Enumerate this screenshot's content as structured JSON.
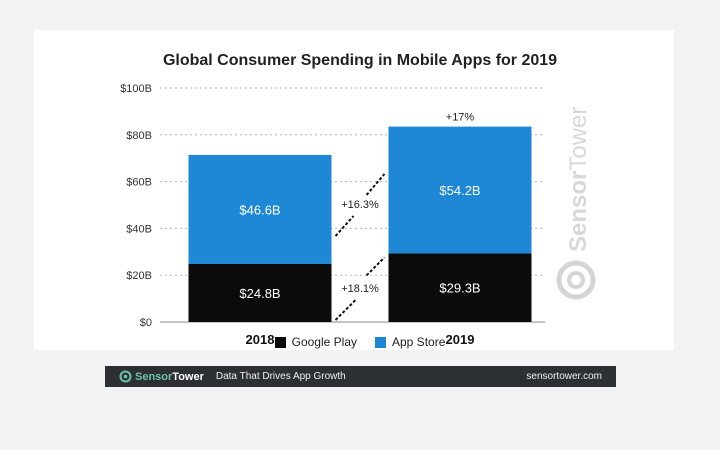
{
  "chart_data": {
    "type": "bar",
    "stacked": true,
    "title": "Global Consumer Spending in Mobile Apps for 2019",
    "categories": [
      "2018",
      "2019"
    ],
    "series": [
      {
        "name": "Google Play",
        "color": "#0b0b0b",
        "values": [
          24.8,
          29.3
        ],
        "labels": [
          "$24.8B",
          "$29.3B"
        ]
      },
      {
        "name": "App Store",
        "color": "#1e88d6",
        "values": [
          46.6,
          54.2
        ],
        "labels": [
          "$46.6B",
          "$54.2B"
        ]
      }
    ],
    "ylim": [
      0,
      100
    ],
    "yticks": [
      0,
      20,
      40,
      60,
      80,
      100
    ],
    "ytick_labels": [
      "$0",
      "$20B",
      "$40B",
      "$60B",
      "$80B",
      "$100B"
    ],
    "grid": true,
    "legend_position": "bottom",
    "growth_labels": {
      "google_play": "+18.1%",
      "app_store": "+16.3%",
      "total": "+17%"
    }
  },
  "watermark": {
    "text_sensor": "Sensor",
    "text_tower": "Tower"
  },
  "footer": {
    "brand_sensor": "Sensor",
    "brand_tower": "Tower",
    "tagline": "Data That Drives App Growth",
    "url": "sensortower.com"
  },
  "colors": {
    "brand_green": "#6cc4a8",
    "footer_bg": "#2c2f33"
  }
}
